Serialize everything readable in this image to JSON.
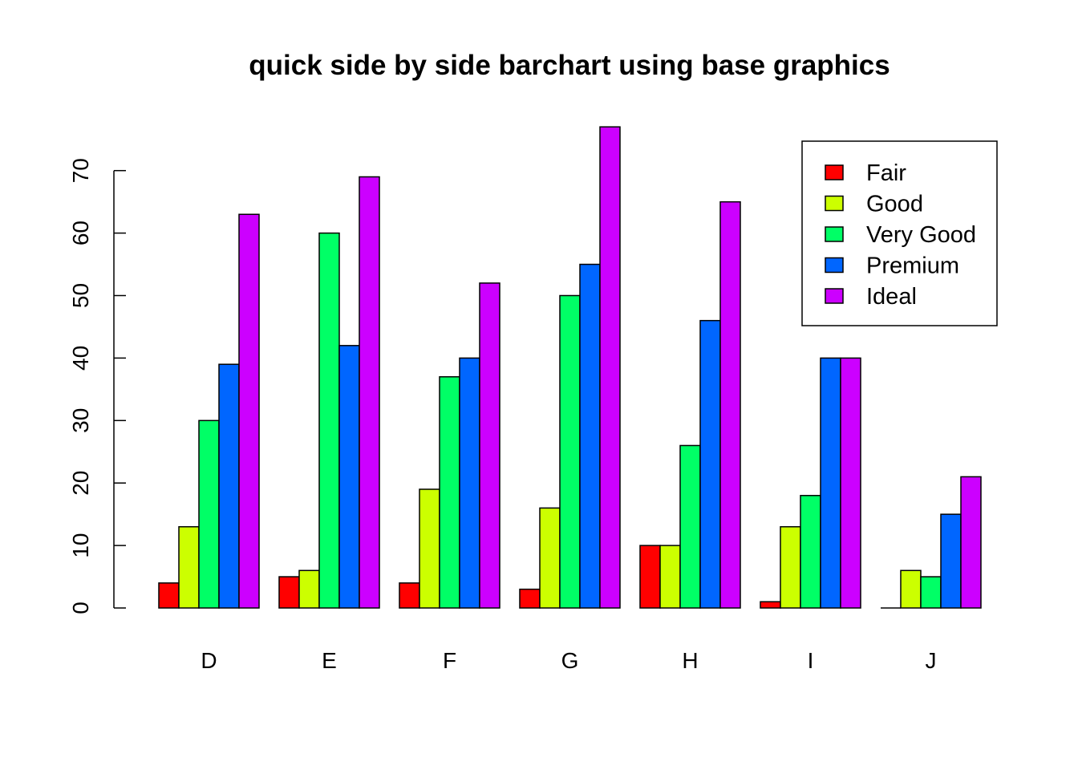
{
  "chart_data": {
    "type": "bar",
    "title": "quick side by side barchart using base graphics",
    "xlabel": "",
    "ylabel": "",
    "categories": [
      "D",
      "E",
      "F",
      "G",
      "H",
      "I",
      "J"
    ],
    "series": [
      {
        "name": "Fair",
        "color": "#ff0000",
        "values": [
          4,
          5,
          4,
          3,
          10,
          1,
          0
        ]
      },
      {
        "name": "Good",
        "color": "#ccff00",
        "values": [
          13,
          6,
          19,
          16,
          10,
          13,
          6
        ]
      },
      {
        "name": "Very Good",
        "color": "#00ff66",
        "values": [
          30,
          60,
          37,
          50,
          26,
          18,
          5
        ]
      },
      {
        "name": "Premium",
        "color": "#0066ff",
        "values": [
          39,
          42,
          40,
          55,
          46,
          40,
          15
        ]
      },
      {
        "name": "Ideal",
        "color": "#cc00ff",
        "values": [
          63,
          69,
          52,
          77,
          65,
          40,
          21
        ]
      }
    ],
    "y_ticks": [
      "0",
      "10",
      "20",
      "30",
      "40",
      "50",
      "60",
      "70"
    ],
    "ylim": [
      0,
      77
    ],
    "grid": false,
    "legend_position": "top-right",
    "layout": "grouped"
  }
}
